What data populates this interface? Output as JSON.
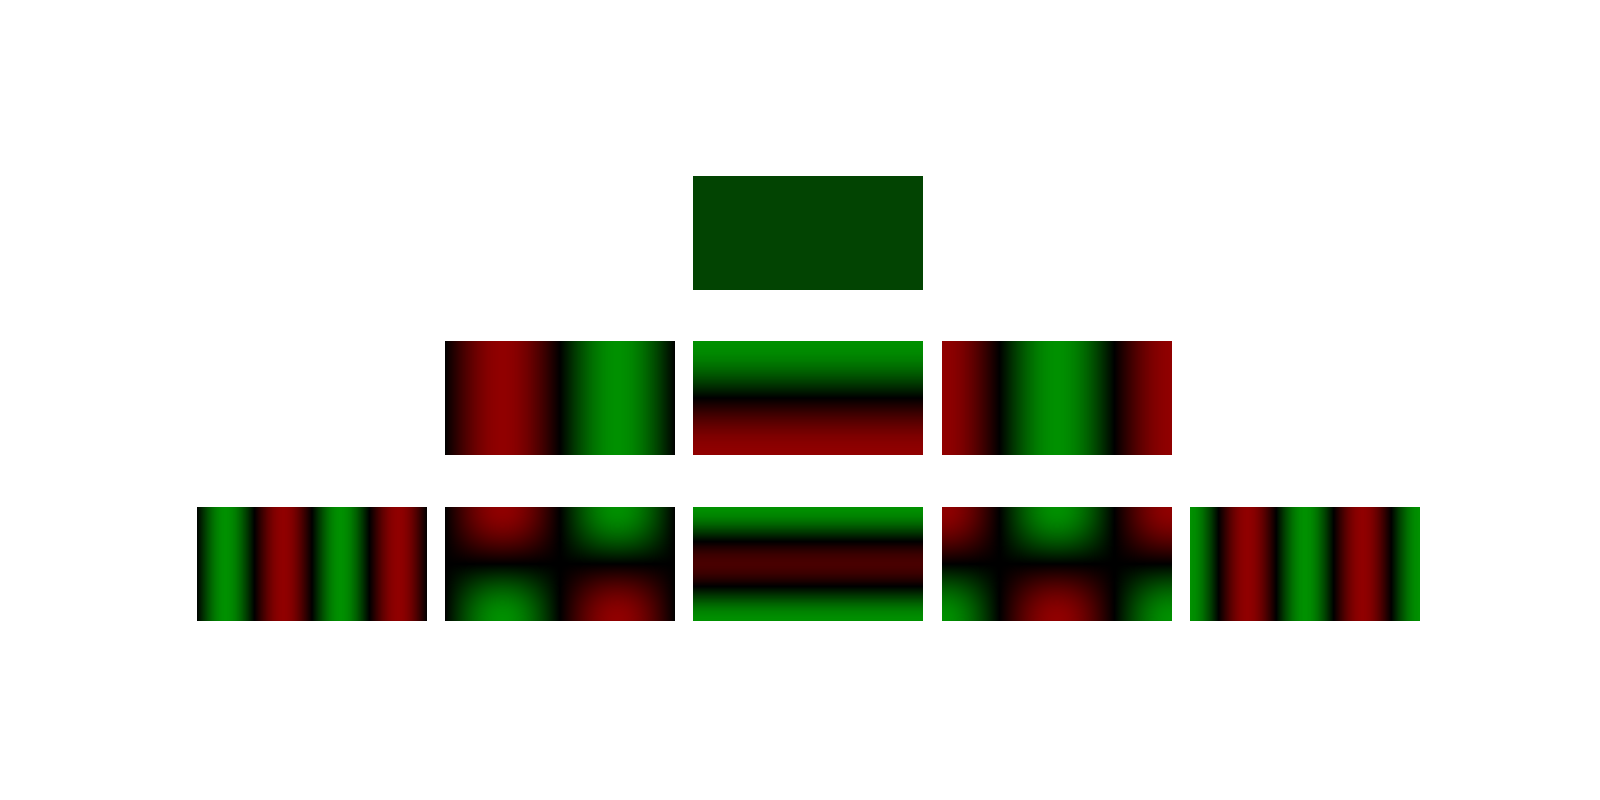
{
  "colors": {
    "background": "#ffffff",
    "positive": "#009000",
    "negative": "#900000",
    "zero": "#000000",
    "constant": "#024402"
  },
  "diagram": {
    "rows": [
      {
        "degree": 0,
        "tiles": [
          {
            "id": "m0",
            "kind": "constant"
          }
        ]
      },
      {
        "degree": 1,
        "tiles": [
          {
            "id": "m-1",
            "kind": "product",
            "nx": 1,
            "ny": 0,
            "phase": "sin",
            "sign": -1
          },
          {
            "id": "m0",
            "kind": "product",
            "nx": 0,
            "ny": 1,
            "phase": "cos",
            "sign": 1
          },
          {
            "id": "m+1",
            "kind": "product",
            "nx": 1,
            "ny": 0,
            "phase": "cos",
            "sign": -1
          }
        ]
      },
      {
        "degree": 2,
        "tiles": [
          {
            "id": "m-2",
            "kind": "product",
            "nx": 2,
            "ny": 0,
            "phase": "sin",
            "sign": 1
          },
          {
            "id": "m-1",
            "kind": "product",
            "nx": 1,
            "ny": 1,
            "phase": "sin",
            "sign": -1
          },
          {
            "id": "m0",
            "kind": "zonal",
            "sign": 1
          },
          {
            "id": "m+1",
            "kind": "product",
            "nx": 1,
            "ny": 1,
            "phase": "cos",
            "sign": -1
          },
          {
            "id": "m+2",
            "kind": "product",
            "nx": 2,
            "ny": 0,
            "phase": "cos",
            "sign": 1
          }
        ]
      }
    ]
  }
}
